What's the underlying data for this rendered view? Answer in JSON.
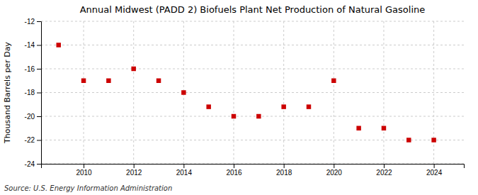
{
  "chart_data": {
    "type": "scatter",
    "title": "Annual Midwest (PADD 2) Biofuels Plant Net Production of Natural Gasoline",
    "ylabel": "Thousand Barrels per Day",
    "source": "Source: U.S. Energy Information Administration",
    "x": [
      2009,
      2010,
      2011,
      2012,
      2013,
      2014,
      2015,
      2016,
      2017,
      2018,
      2019,
      2020,
      2021,
      2022,
      2023,
      2024
    ],
    "values": [
      -14.0,
      -17.0,
      -17.0,
      -16.0,
      -17.0,
      -18.0,
      -19.2,
      -20.0,
      -20.0,
      -19.2,
      -19.2,
      -17.0,
      -21.0,
      -21.0,
      -22.0,
      -22.0
    ],
    "color": "#cc0000",
    "marker": "square",
    "xlim": [
      2008.3,
      2025.2
    ],
    "xticks": [
      2010,
      2012,
      2014,
      2016,
      2018,
      2020,
      2022,
      2024
    ],
    "ylim": [
      -24,
      -12
    ],
    "yticks": [
      -24,
      -22,
      -20,
      -18,
      -16,
      -14,
      -12
    ],
    "grid": true
  }
}
